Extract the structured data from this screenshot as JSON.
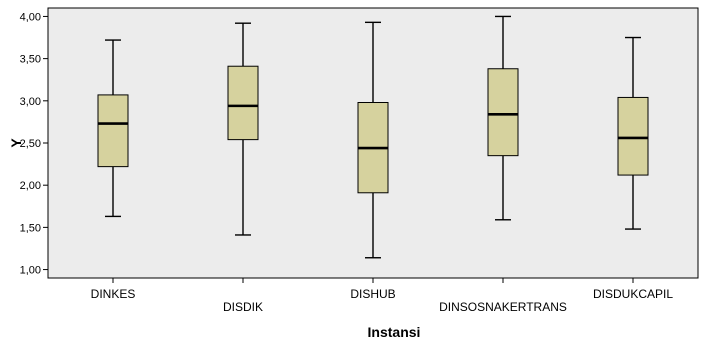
{
  "chart_data": {
    "type": "boxplot",
    "xlabel": "Instansi",
    "ylabel": "Y",
    "ylim": [
      0.9,
      4.1
    ],
    "yticks": [
      "1,00",
      "1,50",
      "2,00",
      "2,50",
      "3,00",
      "3,50",
      "4,00"
    ],
    "ytick_values": [
      1.0,
      1.5,
      2.0,
      2.5,
      3.0,
      3.5,
      4.0
    ],
    "grid": false,
    "colors": {
      "plot_bg": "#ececec",
      "box_fill": "#d6d29e",
      "line": "#000000"
    },
    "categories": [
      "DINKES",
      "DISDIK",
      "DISHUB",
      "DINSOSNAKERTRANS",
      "DISDUKCAPIL"
    ],
    "boxes": [
      {
        "min": 1.63,
        "q1": 2.22,
        "median": 2.73,
        "q3": 3.07,
        "max": 3.72
      },
      {
        "min": 1.41,
        "q1": 2.54,
        "median": 2.94,
        "q3": 3.41,
        "max": 3.92
      },
      {
        "min": 1.14,
        "q1": 1.91,
        "median": 2.44,
        "q3": 2.98,
        "max": 3.93
      },
      {
        "min": 1.59,
        "q1": 2.35,
        "median": 2.84,
        "q3": 3.38,
        "max": 4.0
      },
      {
        "min": 1.48,
        "q1": 2.12,
        "median": 2.56,
        "q3": 3.04,
        "max": 3.75
      }
    ]
  }
}
